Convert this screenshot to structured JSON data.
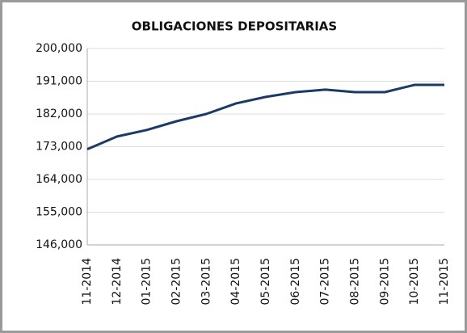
{
  "chart_data": {
    "type": "line",
    "title": "OBLIGACIONES DEPOSITARIAS",
    "categories": [
      "11-2014",
      "12-2014",
      "01-2015",
      "02-2015",
      "03-2015",
      "04-2015",
      "05-2015",
      "06-2015",
      "07-2015",
      "08-2015",
      "09-2015",
      "10-2015",
      "11-2015"
    ],
    "series": [
      {
        "name": "Obligaciones depositarias",
        "color": "#1b3a66",
        "values": [
          172300,
          175800,
          177600,
          180000,
          182000,
          184900,
          186700,
          188000,
          188700,
          188000,
          188000,
          190000,
          190000
        ]
      }
    ],
    "ylim": [
      146000,
      200000
    ],
    "yticks": [
      {
        "value": 146000,
        "label": "146,000"
      },
      {
        "value": 155000,
        "label": "155,000"
      },
      {
        "value": 164000,
        "label": "164,000"
      },
      {
        "value": 173000,
        "label": "173,000"
      },
      {
        "value": 182000,
        "label": "182,000"
      },
      {
        "value": 191000,
        "label": "191,000"
      },
      {
        "value": 200000,
        "label": "200,000"
      }
    ],
    "grid": true
  }
}
